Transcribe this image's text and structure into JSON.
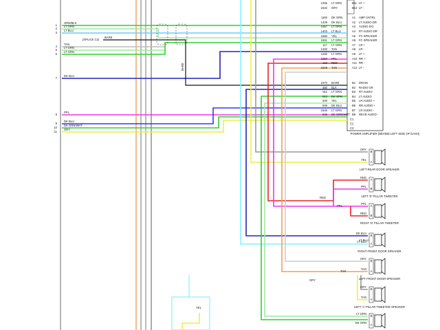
{
  "left_wires": [
    {
      "pin": "1",
      "color": "ORN/BLK"
    },
    {
      "pin": "2",
      "color": "LT GRN"
    },
    {
      "pin": "3",
      "color": "LT BLU"
    },
    {
      "pin": "4",
      "color": "TAN"
    },
    {
      "pin": "5",
      "color": "LT GRN"
    },
    {
      "pin": "6",
      "color": "LT GRN"
    },
    {
      "pin": "7",
      "color": "DK BLU"
    },
    {
      "pin": "8",
      "color": "PPL"
    },
    {
      "pin": "9",
      "color": "DK BLU"
    },
    {
      "pin": "10",
      "color": "DK GRN/WHT"
    },
    {
      "pin": "11",
      "color": "GRY"
    }
  ],
  "shield": {
    "label": "BARE",
    "splice": "(SPLICE C2)",
    "vertical": "BARE"
  },
  "amp_pins": [
    {
      "circuit": "1346",
      "color": "LT GRN",
      "pin": "B11",
      "function": "LF +"
    },
    {
      "circuit": "1532",
      "color": "GRY",
      "pin": "B12",
      "function": "LF -"
    },
    {
      "circuit": "1160",
      "color": "DK GRN",
      "pin": "A1",
      "function": "AMP CNTRL"
    },
    {
      "circuit": "1429",
      "color": "DK BLU",
      "pin": "A2",
      "function": "LT AUDIO DR"
    },
    {
      "circuit": "1457",
      "color": "LT GRN",
      "pin": "A3",
      "function": "AUDIO SIG"
    },
    {
      "circuit": "1403",
      "color": "LT BLU",
      "pin": "A4",
      "function": "RT AUDIO DR"
    },
    {
      "circuit": "1550",
      "color": "YEL",
      "pin": "A5",
      "function": "FC SPEAKER"
    },
    {
      "circuit": "1551",
      "color": "LT GRN",
      "pin": "A6",
      "function": "FC SPEAKER"
    },
    {
      "circuit": "117",
      "color": "LT GRN",
      "pin": "A7",
      "function": "LR +"
    },
    {
      "circuit": "1330",
      "color": "TAN",
      "pin": "A8",
      "function": "LR -"
    },
    {
      "circuit": "1280",
      "color": "LT GRN",
      "pin": "A9",
      "function": "LF +"
    },
    {
      "circuit": "1950",
      "color": "PPL",
      "pin": "A10",
      "function": "RR +"
    },
    {
      "circuit": "118",
      "color": "RED",
      "pin": "A11",
      "function": "RR -"
    },
    {
      "circuit": "1519",
      "color": "TAN",
      "pin": "A12",
      "function": "LF -"
    },
    {
      "circuit": "1570",
      "color": "BARE",
      "pin": "B1",
      "function": "DRAIN"
    },
    {
      "circuit": "450",
      "color": "BLK",
      "pin": "B2",
      "function": "RADIO GR"
    },
    {
      "circuit": "511",
      "color": "LT GRN",
      "pin": "B3",
      "function": "RT AUDIO"
    },
    {
      "circuit": "513",
      "color": "DK GRN",
      "pin": "B4",
      "function": "LT AUDIO"
    },
    {
      "circuit": "200",
      "color": "YEL",
      "pin": "B5",
      "function": "LR AUDIO +"
    },
    {
      "circuit": "549",
      "color": "DK BLU",
      "pin": "B6",
      "function": "RR AUDIO +"
    },
    {
      "circuit": "1646",
      "color": "LT GRN",
      "pin": "B7",
      "function": "LR AUDIO -"
    },
    {
      "circuit": "646",
      "color": "DK GRN/WHT",
      "pin": "B8",
      "function": "REAR AUDIO -"
    }
  ],
  "amp_extra_pins": [
    "C1",
    "C2",
    "C3"
  ],
  "amp_title": "POWER AMPLIFIER (BEHIND LEFT SIDE OF DASH)",
  "speakers": [
    {
      "name": "LEFT REAR DOOR SPEAKER",
      "pins": [
        {
          "pin": "B",
          "color": "GRY"
        },
        {
          "pin": "A",
          "color": "YEL"
        }
      ]
    },
    {
      "name": "LEFT 'D' PILLAR TWEETER",
      "pins": [
        {
          "pin": "A",
          "color": "RED"
        },
        {
          "pin": "B",
          "color": "PPL"
        }
      ]
    },
    {
      "name": "RIGHT 'D' PILLAR TWEETER",
      "pins": [
        {
          "pin": "A",
          "color": "PPL"
        },
        {
          "pin": "B",
          "color": "RED"
        }
      ]
    },
    {
      "name": "RIGHT FRONT DOOR SPEAKER",
      "pins": [
        {
          "pin": "B",
          "color": "DK BLU"
        },
        {
          "pin": "A",
          "color": "LT BLU"
        }
      ]
    },
    {
      "name": "LEFT FRONT DOOR SPEAKER",
      "pins": [
        {
          "pin": "B",
          "color": "GRY"
        },
        {
          "pin": "A",
          "color": "TAN"
        }
      ]
    },
    {
      "name": "LEFT 'A' PILLAR TWEETER SPEAKER",
      "pins": [
        {
          "pin": "B",
          "color": "GRY"
        },
        {
          "pin": "A",
          "color": "TAN"
        }
      ]
    },
    {
      "name": "",
      "pins": [
        {
          "pin": "B",
          "color": "LT GRN"
        },
        {
          "pin": "A",
          "color": "DK GRN"
        }
      ]
    }
  ],
  "splice_labels": [
    "RED",
    "PPL",
    "GRY",
    "TAN",
    "LT BLU",
    "YEL"
  ]
}
